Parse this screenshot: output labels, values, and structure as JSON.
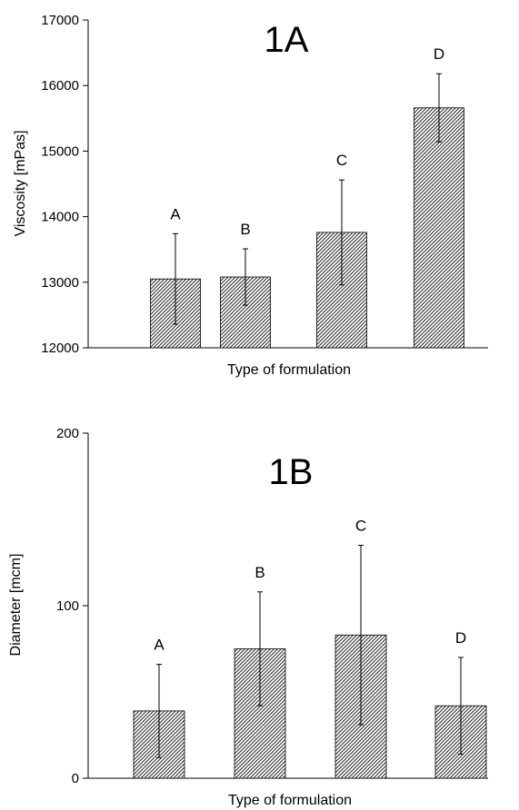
{
  "chart_data": [
    {
      "type": "bar",
      "title": "1A",
      "xlabel": "Type of formulation",
      "ylabel": "Viscosity [mPas]",
      "ylim": [
        12000,
        17000
      ],
      "yticks": [
        "12000",
        "13000",
        "14000",
        "15000",
        "16000",
        "17000"
      ],
      "categories": [
        "A",
        "B",
        "C",
        "D"
      ],
      "values": [
        13050,
        13080,
        13760,
        15660
      ],
      "errors": [
        690,
        430,
        800,
        520
      ],
      "bar_fill": "hatched",
      "grid": false,
      "legend": "none"
    },
    {
      "type": "bar",
      "title": "1B",
      "xlabel": "Type of formulation",
      "ylabel": "Diameter [mcm]",
      "ylim": [
        0,
        200
      ],
      "yticks": [
        "0",
        "100",
        "200"
      ],
      "categories": [
        "A",
        "B",
        "C",
        "D"
      ],
      "values": [
        39,
        75,
        83,
        42
      ],
      "errors": [
        27,
        33,
        52,
        28
      ],
      "bar_fill": "hatched",
      "grid": false,
      "legend": "none"
    }
  ],
  "colors": {
    "axis": "#000000",
    "hatch": "#333333",
    "bar_bg": "#ffffff"
  }
}
